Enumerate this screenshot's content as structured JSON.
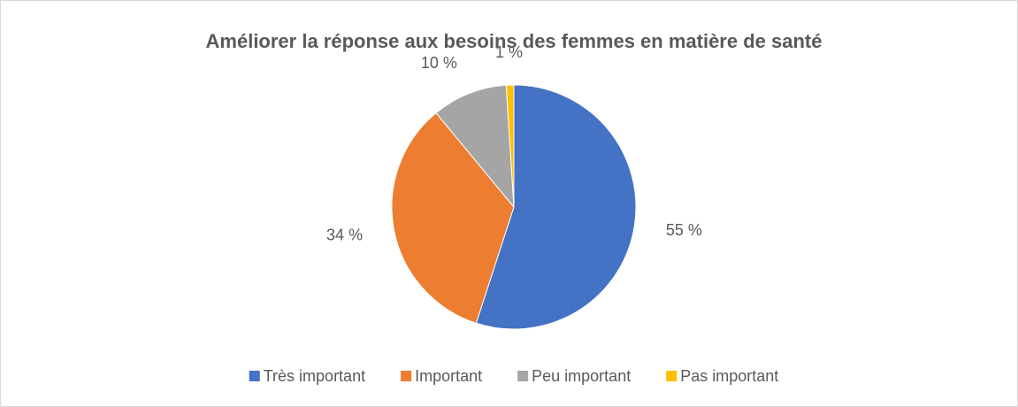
{
  "chart_data": {
    "type": "pie",
    "title": "Améliorer la réponse aux besoins des femmes en matière de santé",
    "categories": [
      "Très important",
      "Important",
      "Peu important",
      "Pas important"
    ],
    "values": [
      55,
      34,
      10,
      1
    ],
    "value_labels": [
      "55 %",
      "34 %",
      "10 %",
      "1 %"
    ],
    "colors": [
      "#4472c4",
      "#ed7d31",
      "#a5a5a5",
      "#ffc000"
    ],
    "legend": "bottom"
  }
}
